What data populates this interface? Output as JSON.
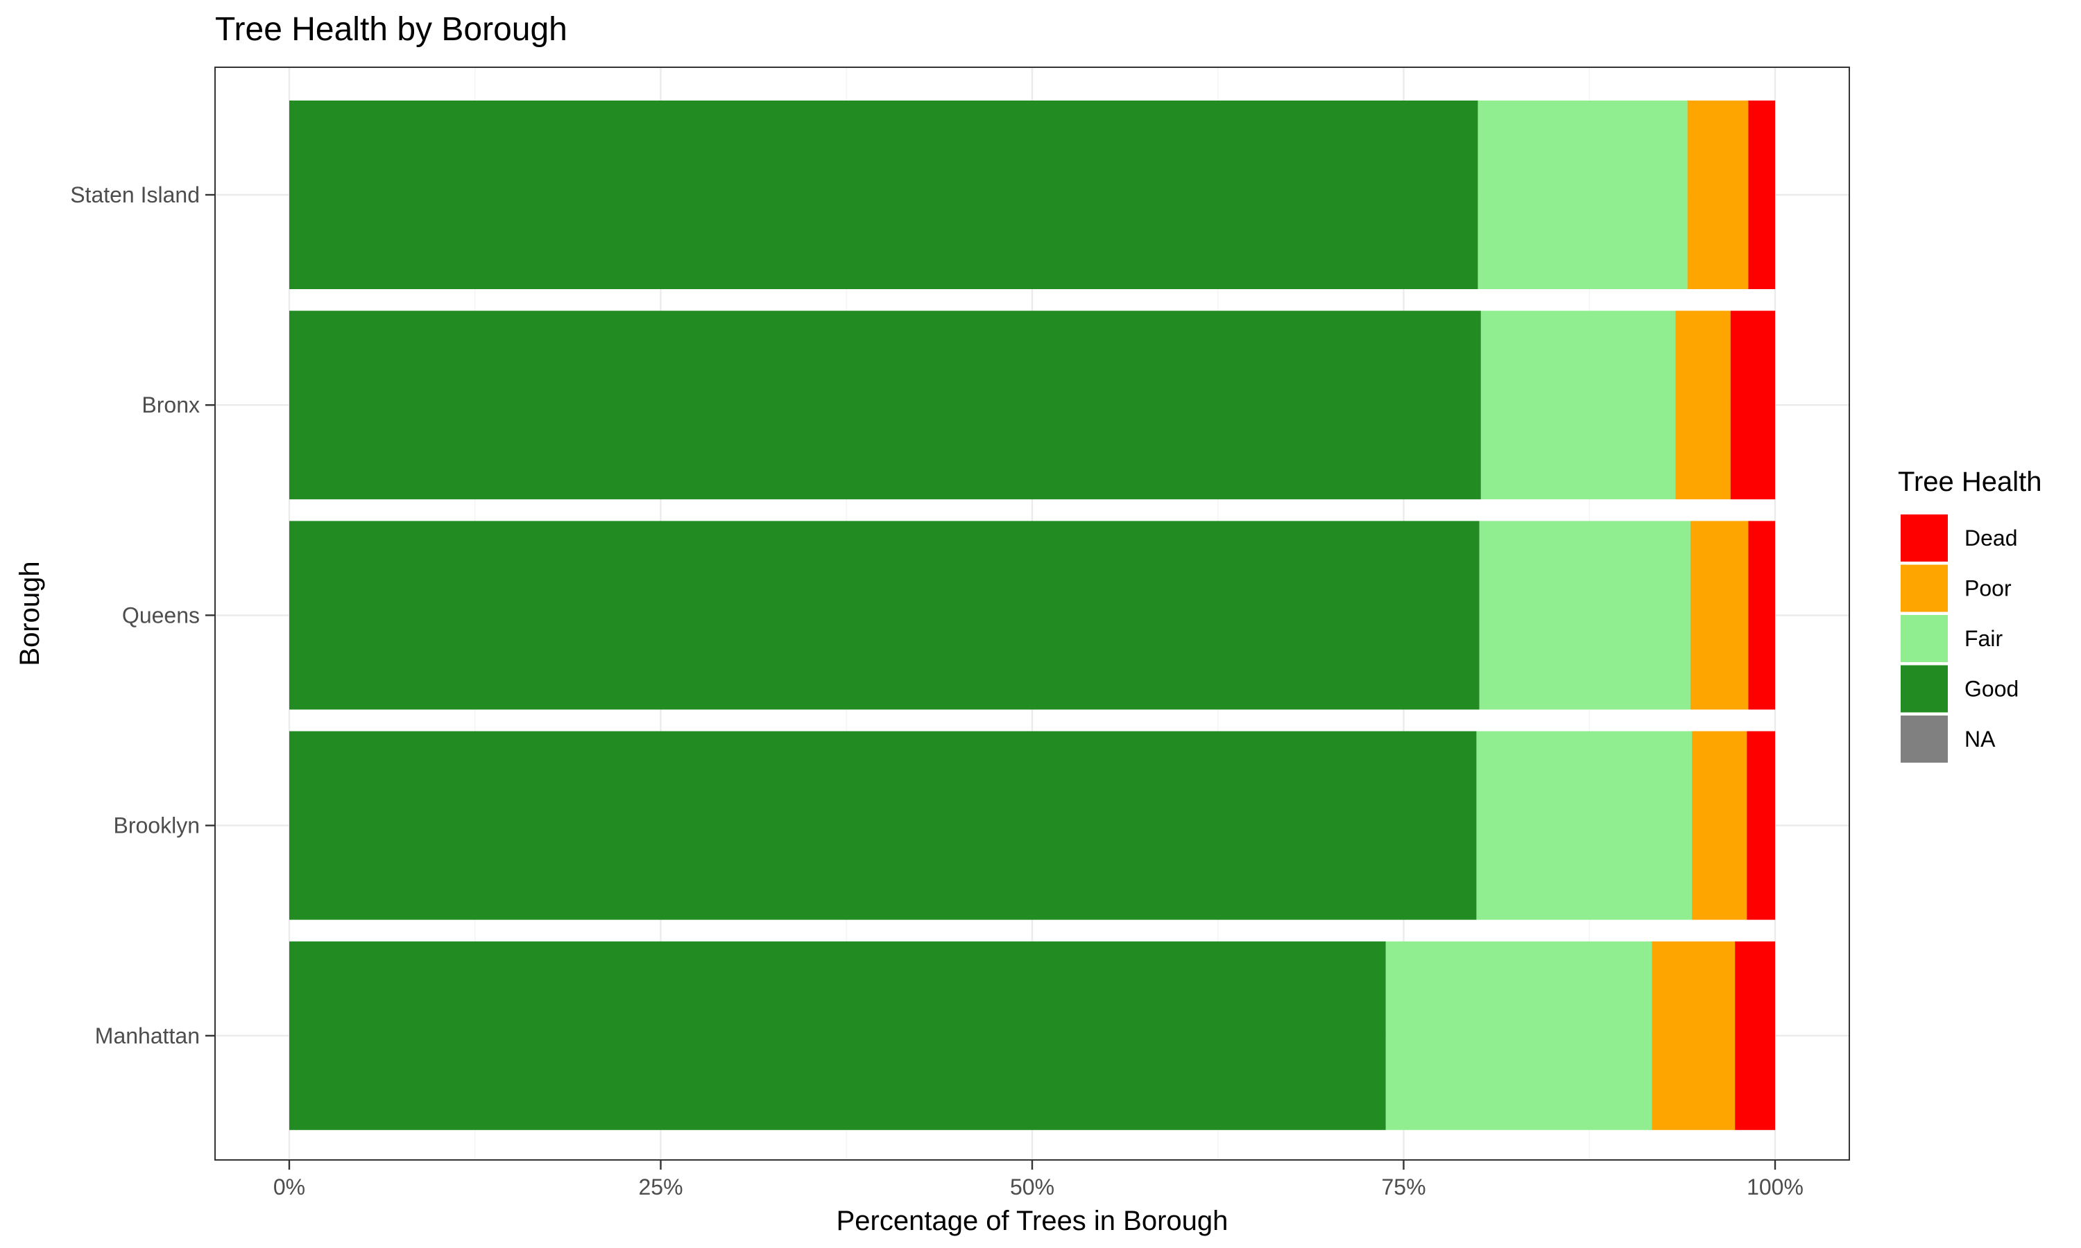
{
  "chart_data": {
    "type": "bar",
    "orientation": "horizontal",
    "stacked": "percent",
    "title": "Tree Health by Borough",
    "xlabel": "Percentage of Trees in Borough",
    "ylabel": "Borough",
    "xlim": [
      0,
      100
    ],
    "x_ticks": [
      "0%",
      "25%",
      "50%",
      "75%",
      "100%"
    ],
    "categories": [
      "Staten Island",
      "Bronx",
      "Queens",
      "Brooklyn",
      "Manhattan"
    ],
    "series": [
      {
        "name": "Good",
        "color": "#228b22",
        "values": [
          80.0,
          80.2,
          80.1,
          79.9,
          73.8
        ]
      },
      {
        "name": "Fair",
        "color": "#90ee90",
        "values": [
          14.1,
          13.1,
          14.2,
          14.5,
          17.9
        ]
      },
      {
        "name": "Poor",
        "color": "#ffa500",
        "values": [
          4.1,
          3.7,
          3.9,
          3.7,
          5.6
        ]
      },
      {
        "name": "Dead",
        "color": "#ff0000",
        "values": [
          1.8,
          3.0,
          1.8,
          1.9,
          2.7
        ]
      },
      {
        "name": "NA",
        "color": "#808080",
        "values": [
          0,
          0,
          0,
          0,
          0
        ]
      }
    ],
    "legend": {
      "title": "Tree Health",
      "position": "right",
      "items": [
        {
          "label": "Dead",
          "color": "#ff0000"
        },
        {
          "label": "Poor",
          "color": "#ffa500"
        },
        {
          "label": "Fair",
          "color": "#90ee90"
        },
        {
          "label": "Good",
          "color": "#228b22"
        },
        {
          "label": "NA",
          "color": "#808080"
        }
      ]
    },
    "grid": true
  }
}
